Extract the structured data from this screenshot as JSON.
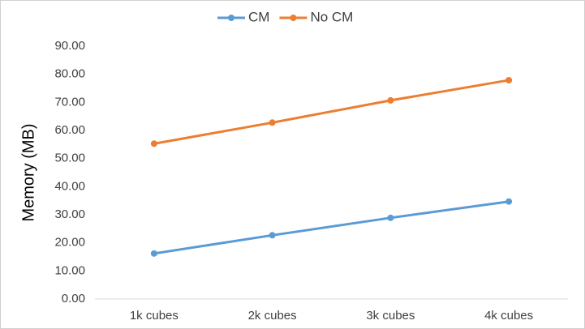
{
  "chart_data": {
    "type": "line",
    "y_label": "Memory (MB)",
    "categories": [
      "1k cubes",
      "2k cubes",
      "3k cubes",
      "4k cubes"
    ],
    "series": [
      {
        "name": "CM",
        "color": "#5b9bd5",
        "values": [
          16.2,
          22.7,
          28.9,
          34.7
        ]
      },
      {
        "name": "No CM",
        "color": "#ed7d31",
        "values": [
          55.3,
          62.8,
          70.7,
          77.9
        ]
      }
    ],
    "ylim": [
      0,
      90
    ],
    "yticks": [
      {
        "value": 0,
        "label": "0.00"
      },
      {
        "value": 10,
        "label": "10.00"
      },
      {
        "value": 20,
        "label": "20.00"
      },
      {
        "value": 30,
        "label": "30.00"
      },
      {
        "value": 40,
        "label": "40.00"
      },
      {
        "value": 50,
        "label": "50.00"
      },
      {
        "value": 60,
        "label": "60.00"
      },
      {
        "value": 70,
        "label": "70.00"
      },
      {
        "value": 80,
        "label": "80.00"
      },
      {
        "value": 90,
        "label": "90.00"
      }
    ],
    "grid": false,
    "legend": "top"
  }
}
